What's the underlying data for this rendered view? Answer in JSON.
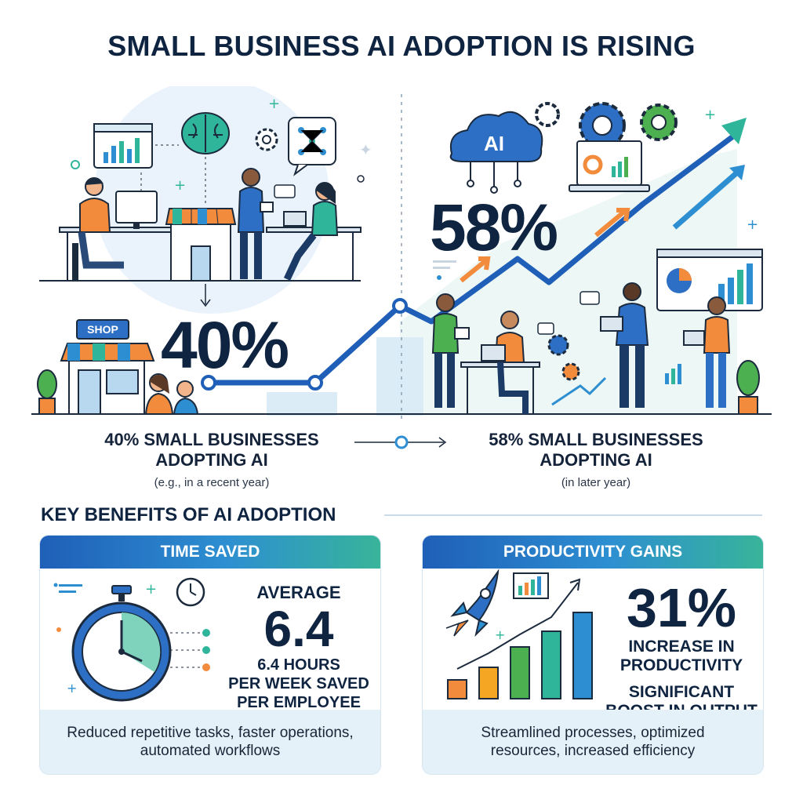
{
  "title": "SMALL BUSINESS AI ADOPTION IS RISING",
  "hero": {
    "pct_left": "40%",
    "pct_right": "58%",
    "shop_sign": "SHOP",
    "ai_cloud": "AI",
    "left_caption": {
      "line1": "40% SMALL BUSINESSES",
      "line2": "ADOPTING AI",
      "note": "(e.g., in a recent year)"
    },
    "right_caption": {
      "line1": "58% SMALL BUSINESSES",
      "line2": "ADOPTING AI",
      "note": "(in later year)"
    }
  },
  "benefits": {
    "section_title": "KEY BENEFITS OF AI ADOPTION",
    "time_saved": {
      "header": "TIME SAVED",
      "label": "AVERAGE",
      "value": "6.4",
      "detail1": "6.4 HOURS",
      "detail2": "PER WEEK SAVED",
      "detail3": "PER EMPLOYEE",
      "footer": "Reduced repetitive tasks, faster operations, automated workflows"
    },
    "productivity": {
      "header": "PRODUCTIVITY GAINS",
      "value": "31%",
      "detail1": "INCREASE IN",
      "detail2": "PRODUCTIVITY",
      "detail3": "SIGNIFICANT",
      "detail4": "BOOST IN OUTPUT",
      "footer": "Streamlined processes, optimized resources, increased efficiency"
    }
  },
  "colors": {
    "navy": "#0f2440",
    "blue": "#1f5fb8",
    "teal": "#2fb59a",
    "orange": "#f28b3c",
    "green": "#4caf50"
  }
}
